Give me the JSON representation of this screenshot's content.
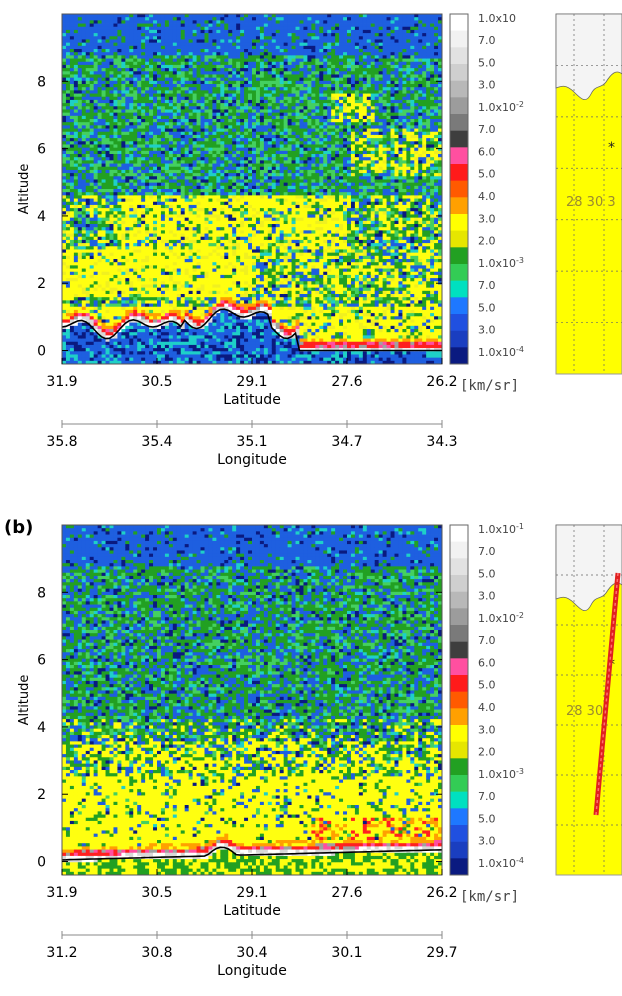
{
  "panels": [
    {
      "label": "",
      "ylabel": "Altitude",
      "yticks": [
        "0",
        "2",
        "4",
        "6",
        "8"
      ],
      "xlabel": "Latitude",
      "xticks": [
        "31.9",
        "30.5",
        "29.1",
        "27.6",
        "26.2"
      ],
      "x2label": "Longitude",
      "x2ticks": [
        "35.8",
        "35.4",
        "35.1",
        "34.7",
        "34.3"
      ],
      "colorbar_top": "1.0x10",
      "track_numbers": "28 30 3"
    },
    {
      "label": "(b)",
      "ylabel": "Altitude",
      "yticks": [
        "0",
        "2",
        "4",
        "6",
        "8"
      ],
      "xlabel": "Latitude",
      "xticks": [
        "31.9",
        "30.5",
        "29.1",
        "27.6",
        "26.2"
      ],
      "x2label": "Longitude",
      "x2ticks": [
        "31.2",
        "30.8",
        "30.4",
        "30.1",
        "29.7"
      ],
      "colorbar_top": "1.0x10",
      "track_numbers": "28 30"
    }
  ],
  "colorbar": {
    "unit": "[km/sr]",
    "labels": [
      "7.0",
      "5.0",
      "3.0",
      "1.0x10",
      "7.0",
      "6.0",
      "5.0",
      "4.0",
      "3.0",
      "2.0",
      "1.0x10",
      "7.0",
      "5.0",
      "3.0",
      "1.0x10"
    ],
    "label_exponents": [
      "",
      "",
      "",
      "-2",
      "",
      "",
      "",
      "",
      "",
      "",
      "-3",
      "",
      "",
      "",
      "-4"
    ],
    "top_exponent_b": "-1",
    "colors": [
      "#ffffff",
      "#f2f2f2",
      "#e2e2e2",
      "#cfcfcf",
      "#b8b8b8",
      "#9c9c9c",
      "#7a7a7a",
      "#3e3e3e",
      "#ff4fa0",
      "#ff1a1a",
      "#ff5a00",
      "#ffa000",
      "#ffff00",
      "#e6e600",
      "#22a022",
      "#33cc55",
      "#00e0c0",
      "#1e78ff",
      "#2050e0",
      "#1a3ec0",
      "#0a1a80"
    ]
  },
  "chart_data": [
    {
      "type": "heatmap",
      "title": "",
      "xlabel": "Latitude",
      "ylabel": "Altitude",
      "x_ticks": [
        31.9,
        30.5,
        29.1,
        27.6,
        26.2
      ],
      "x2label": "Longitude",
      "x2_ticks": [
        35.8,
        35.4,
        35.1,
        34.7,
        34.3
      ],
      "y_ticks": [
        0,
        2,
        4,
        6,
        8
      ],
      "ylim": [
        -0.4,
        10
      ],
      "colorbar_unit": "km/sr",
      "colorbar_scale": "log",
      "colorbar_range": [
        0.0001,
        0.1
      ],
      "aerosol_layers_altitude": [
        [
          1.5,
          3.0
        ],
        [
          3.0,
          4.6
        ],
        [
          5.5,
          6.5
        ]
      ],
      "surface_elevation_max": 1.2
    },
    {
      "type": "heatmap",
      "title": "",
      "xlabel": "Latitude",
      "ylabel": "Altitude",
      "x_ticks": [
        31.9,
        30.5,
        29.1,
        27.6,
        26.2
      ],
      "x2label": "Longitude",
      "x2_ticks": [
        31.2,
        30.8,
        30.4,
        30.1,
        29.7
      ],
      "y_ticks": [
        0,
        2,
        4,
        6,
        8
      ],
      "ylim": [
        -0.4,
        10
      ],
      "colorbar_unit": "km/sr",
      "colorbar_scale": "log",
      "colorbar_range": [
        0.0001,
        0.1
      ],
      "aerosol_layers_altitude": [
        [
          0.3,
          3.8
        ]
      ],
      "surface_elevation_max": 0.4
    }
  ]
}
